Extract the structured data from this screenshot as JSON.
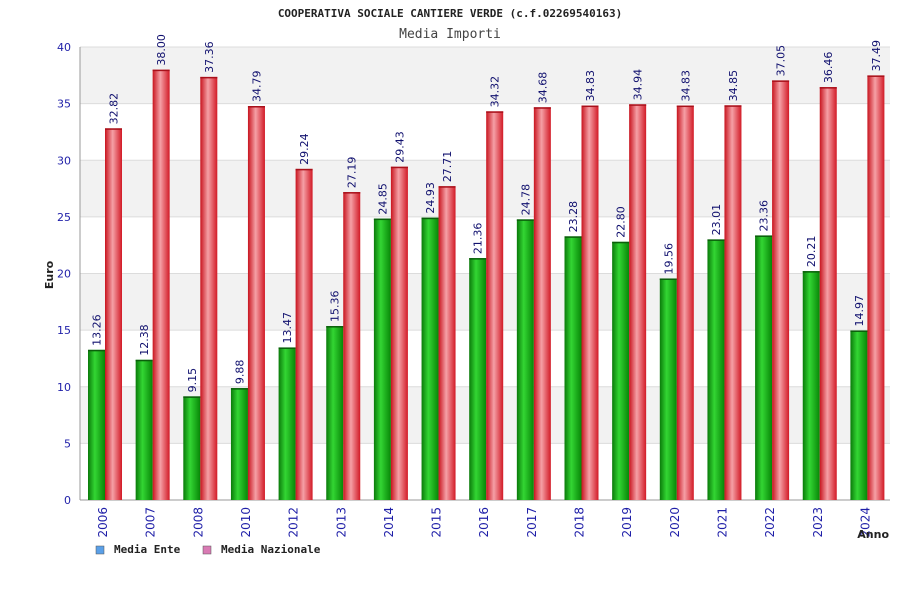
{
  "chart_data": {
    "type": "bar",
    "title": "COOPERATIVA SOCIALE CANTIERE VERDE (c.f.02269540163)",
    "subtitle": "Media Importi",
    "xlabel": "Anno",
    "ylabel": "Euro",
    "ylim": [
      0,
      40
    ],
    "yticks": [
      "0",
      "5",
      "10",
      "15",
      "20",
      "25",
      "30",
      "35",
      "40"
    ],
    "grid": true,
    "legend_position": "bottom-left",
    "categories": [
      "2006",
      "2007",
      "2008",
      "2010",
      "2012",
      "2013",
      "2014",
      "2015",
      "2016",
      "2017",
      "2018",
      "2019",
      "2020",
      "2021",
      "2022",
      "2023",
      "2024"
    ],
    "series": [
      {
        "name": "Media Ente",
        "color": "#22bb22",
        "legend_color": "#5aa0e8",
        "values": [
          13.26,
          12.38,
          9.15,
          9.88,
          13.47,
          15.36,
          24.85,
          24.93,
          21.36,
          24.78,
          23.28,
          22.8,
          19.56,
          23.01,
          23.36,
          20.21,
          14.97
        ],
        "labels": [
          "13.26",
          "12.38",
          "9.15",
          "9.88",
          "13.47",
          "15.36",
          "24.85",
          "24.93",
          "21.36",
          "24.78",
          "23.28",
          "22.80",
          "19.56",
          "23.01",
          "23.36",
          "20.21",
          "14.97"
        ]
      },
      {
        "name": "Media Nazionale",
        "color": "#ee2a36",
        "legend_color": "#d97ab4",
        "values": [
          32.82,
          38.0,
          37.36,
          34.79,
          29.24,
          27.19,
          29.43,
          27.71,
          34.32,
          34.68,
          34.83,
          34.94,
          34.83,
          34.85,
          37.05,
          36.46,
          37.49
        ],
        "labels": [
          "32.82",
          "38.00",
          "37.36",
          "34.79",
          "29.24",
          "27.19",
          "29.43",
          "27.71",
          "34.32",
          "34.68",
          "34.83",
          "34.94",
          "34.83",
          "34.85",
          "37.05",
          "36.46",
          "37.49"
        ]
      }
    ]
  }
}
